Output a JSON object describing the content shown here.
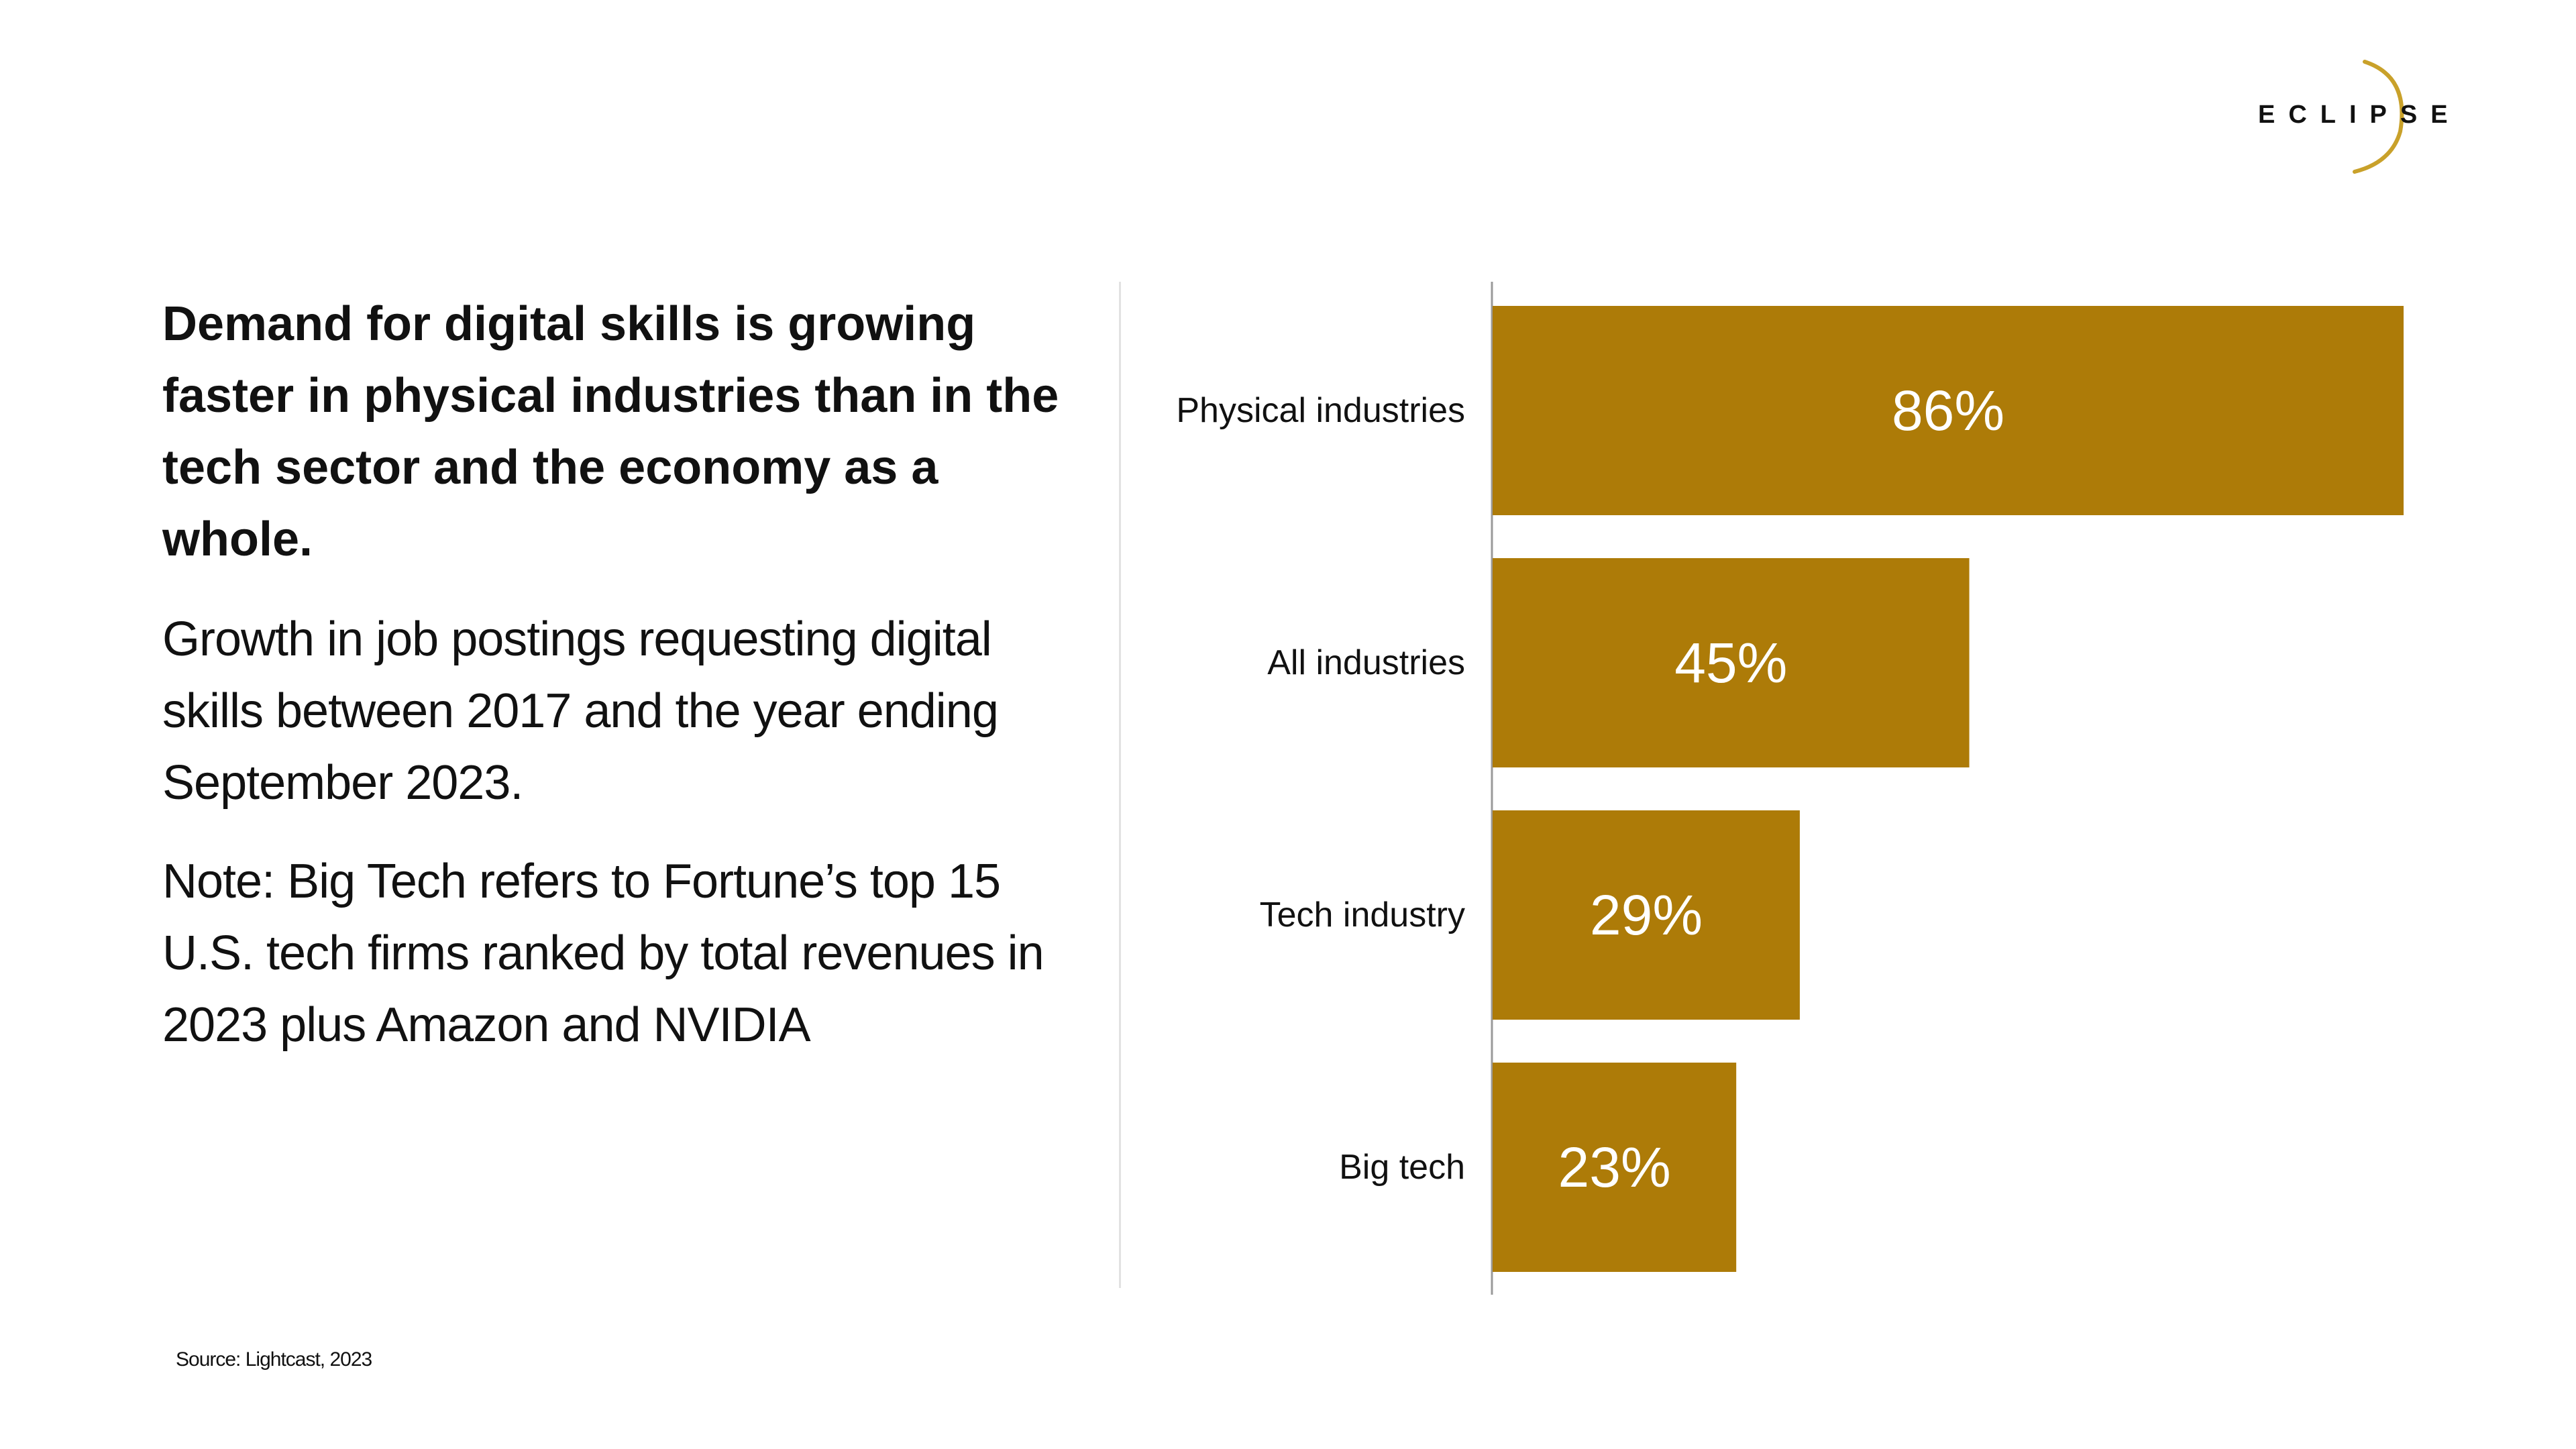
{
  "brand": {
    "name": "ECLIPSE",
    "accent_color": "#c9a12a"
  },
  "text_panel": {
    "headline": "Demand for digital skills is growing faster in physical industries than in the tech sector and the economy as a whole.",
    "description": "Growth in job postings requesting digital skills between 2017 and the year ending September 2023.",
    "note": "Note: Big Tech refers to Fortune’s top 15 U.S. tech firms ranked by total revenues in 2023 plus Amazon and NVIDIA"
  },
  "source": "Source: Lightcast, 2023",
  "chart_data": {
    "type": "bar",
    "orientation": "horizontal",
    "title": "",
    "xlabel": "",
    "ylabel": "",
    "categories": [
      "Physical industries",
      "All industries",
      "Tech industry",
      "Big tech"
    ],
    "values": [
      86,
      45,
      29,
      23
    ],
    "value_labels": [
      "86%",
      "45%",
      "29%",
      "23%"
    ],
    "xlim": [
      0,
      86
    ],
    "bar_color": "#ad7b08",
    "label_color": "#ffffff",
    "grid": false,
    "legend": "none"
  }
}
